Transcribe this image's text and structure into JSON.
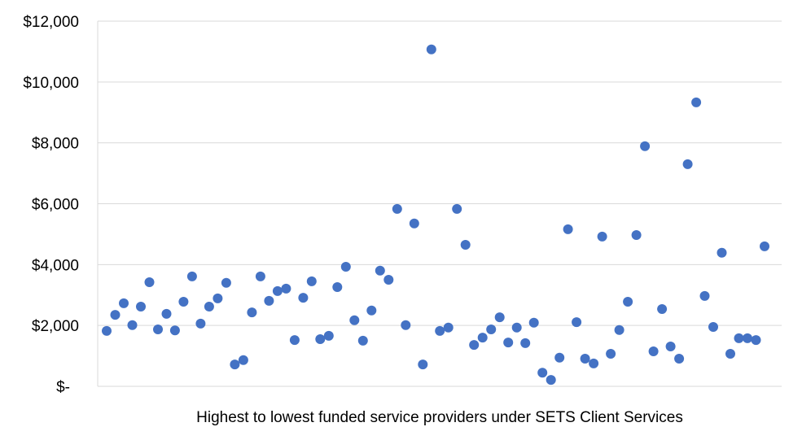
{
  "chart_data": {
    "type": "scatter",
    "title": "",
    "xlabel": "Highest to lowest funded service providers under SETS Client Services",
    "ylabel": "",
    "ylim": [
      0,
      12000
    ],
    "yticks": [
      0,
      2000,
      4000,
      6000,
      8000,
      10000,
      12000
    ],
    "ytick_labels": [
      "$-",
      "$2,000",
      "$4,000",
      "$6,000",
      "$8,000",
      "$10,000",
      "$12,000"
    ],
    "grid": true,
    "legend": null,
    "marker_color": "#4472C4",
    "x": [
      1,
      2,
      3,
      4,
      5,
      6,
      7,
      8,
      9,
      10,
      11,
      12,
      13,
      14,
      15,
      16,
      17,
      18,
      19,
      20,
      21,
      22,
      23,
      24,
      25,
      26,
      27,
      28,
      29,
      30,
      31,
      32,
      33,
      34,
      35,
      36,
      37,
      38,
      39,
      40,
      41,
      42,
      43,
      44,
      45,
      46,
      47,
      48,
      49,
      50,
      51,
      52,
      53,
      54,
      55,
      56,
      57,
      58,
      59,
      60,
      61,
      62,
      63,
      64,
      65,
      66,
      67,
      68,
      69,
      70,
      71,
      72,
      73,
      74,
      75,
      76,
      77,
      78
    ],
    "values": [
      1820,
      2350,
      2730,
      2010,
      2620,
      3420,
      1870,
      2380,
      1840,
      2780,
      3610,
      2060,
      2620,
      2890,
      3400,
      720,
      860,
      2430,
      3610,
      2810,
      3130,
      3210,
      1520,
      2910,
      3450,
      1550,
      1660,
      3260,
      3930,
      2170,
      1500,
      2490,
      3800,
      3500,
      5830,
      2010,
      5350,
      720,
      11070,
      1820,
      1930,
      5830,
      4650,
      1360,
      1600,
      1870,
      2270,
      1440,
      1930,
      1420,
      2090,
      450,
      210,
      940,
      5160,
      2110,
      910,
      750,
      4920,
      1070,
      1850,
      2780,
      4970,
      7890,
      1150,
      2540,
      1310,
      910,
      7300,
      9330,
      2970,
      1950,
      4390,
      1070,
      1580,
      1580,
      1520,
      4600
    ]
  }
}
